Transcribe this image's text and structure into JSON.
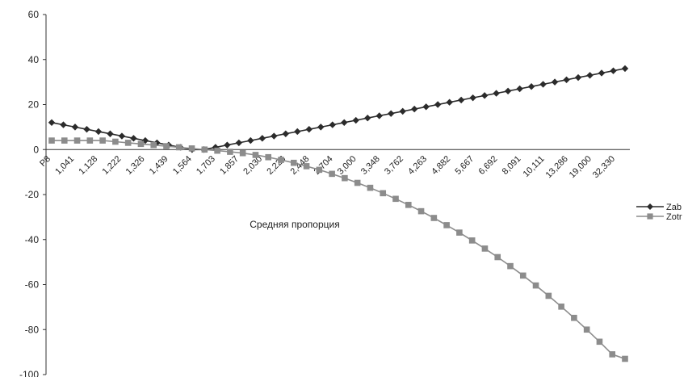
{
  "chart_data": {
    "type": "line",
    "title": "",
    "xlabel": "Средняя пропорция",
    "ylabel": "",
    "ylim": [
      -100,
      60
    ],
    "yticks": [
      60,
      40,
      20,
      0,
      -20,
      -40,
      -60,
      -80,
      -100
    ],
    "grid": false,
    "legend_position": "right",
    "x_tick_labels": [
      "P8",
      "1,041",
      "1,128",
      "1,222",
      "1,326",
      "1,439",
      "1,564",
      "1,703",
      "1,857",
      "2,030",
      "2,226",
      "2,448",
      "2,704",
      "3,000",
      "3,348",
      "3,762",
      "4,263",
      "4,882",
      "5,667",
      "6,692",
      "8,091",
      "10,111",
      "13,286",
      "19,000",
      "32,330"
    ],
    "series": [
      {
        "name": "Zab",
        "marker": "diamond",
        "color": "#2b2b2b",
        "values": [
          12,
          11,
          10,
          9,
          8,
          7,
          6,
          5,
          4,
          3,
          2,
          1,
          0,
          0,
          1,
          2,
          3,
          4,
          5,
          6,
          7,
          8,
          9,
          10,
          11,
          12,
          13,
          14,
          15,
          16,
          17,
          18,
          19,
          20,
          21,
          22,
          23,
          24,
          25,
          26,
          27,
          28,
          29,
          30,
          31,
          32,
          33,
          34,
          35,
          36
        ]
      },
      {
        "name": "Zotr",
        "marker": "square",
        "color": "#8c8c8c",
        "values": [
          4,
          4,
          4,
          4,
          4,
          3.5,
          3,
          2.5,
          2,
          1.5,
          1,
          0.5,
          0,
          -0.5,
          -1,
          -1.6,
          -2.4,
          -3.4,
          -4.6,
          -5.9,
          -7.4,
          -9,
          -10.8,
          -12.7,
          -14.8,
          -17,
          -19.4,
          -21.9,
          -24.6,
          -27.4,
          -30.4,
          -33.6,
          -36.9,
          -40.4,
          -44,
          -47.8,
          -51.8,
          -56,
          -60.4,
          -65,
          -69.8,
          -74.8,
          -80,
          -85.4,
          -91,
          -93
        ]
      }
    ]
  }
}
